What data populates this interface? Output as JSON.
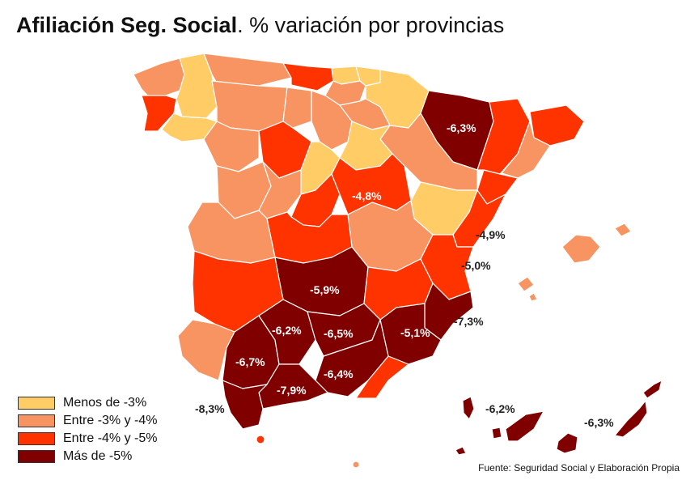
{
  "title": {
    "bold": "Afiliación Seg. Social",
    "rest": ". % variación por provincias"
  },
  "colors": {
    "c1": "#FFCC66",
    "c2": "#F79462",
    "c3": "#FF3300",
    "c4": "#800000"
  },
  "legend": [
    {
      "label": "Menos de -3%",
      "color": "#FFCC66"
    },
    {
      "label": "Entre -3% y -4%",
      "color": "#F79462"
    },
    {
      "label": "Entre -4% y -5%",
      "color": "#FF3300"
    },
    {
      "label": "Más de -5%",
      "color": "#800000"
    }
  ],
  "labels": {
    "huesca": "-6,3%",
    "cuenca": "-4,8%",
    "castellon": "-4,9%",
    "valencia": "-5,0%",
    "ciudad_real": "-5,9%",
    "alicante": "-7,3%",
    "murcia": "-5,1%",
    "cordoba": "-6,2%",
    "jaen": "-6,5%",
    "sevilla": "-6,7%",
    "granada": "-6,4%",
    "malaga": "-7,9%",
    "cadiz": "-8,3%",
    "tenerife": "-6,2%",
    "las_palmas": "-6,3%"
  },
  "source": "Fuente: Seguridad Social y Elaboración Propia"
}
